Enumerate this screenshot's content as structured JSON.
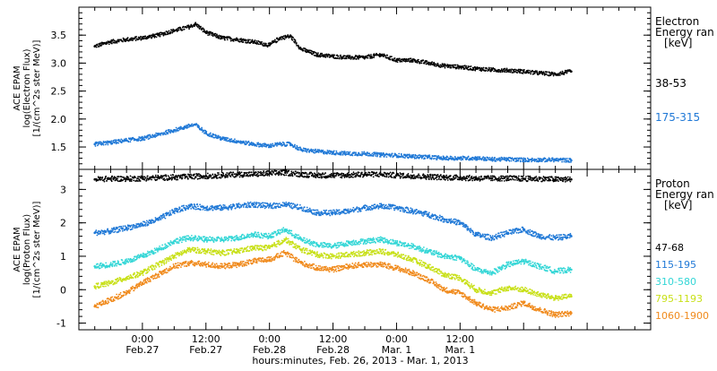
{
  "chart_data": [
    {
      "type": "scatter",
      "title": "",
      "ylabel": [
        "ACE EPAM",
        "log(Electron Flux)",
        "[1/(cm^2s ster MeV)]"
      ],
      "ylim": [
        1.1,
        4.0
      ],
      "yticks": [
        1.5,
        2.0,
        2.5,
        3.0,
        3.5
      ],
      "legend_title": [
        "Electron",
        "Energy ran",
        "[keV]"
      ],
      "series": [
        {
          "name": "38-53",
          "color": "#000000",
          "x": [
            -9,
            -6,
            -3,
            0,
            3,
            6,
            9,
            10,
            12,
            15,
            18,
            21,
            24,
            26,
            28,
            30,
            33,
            36,
            39,
            42,
            45,
            48,
            51,
            54,
            57,
            60,
            63,
            66,
            69,
            72,
            75,
            78,
            81
          ],
          "y": [
            3.3,
            3.38,
            3.42,
            3.45,
            3.5,
            3.58,
            3.65,
            3.7,
            3.55,
            3.45,
            3.42,
            3.38,
            3.32,
            3.45,
            3.48,
            3.25,
            3.15,
            3.12,
            3.1,
            3.1,
            3.15,
            3.05,
            3.05,
            3.0,
            2.95,
            2.93,
            2.9,
            2.88,
            2.87,
            2.85,
            2.82,
            2.8,
            2.85
          ]
        },
        {
          "name": "175-315",
          "color": "#1f78d6",
          "x": [
            -9,
            -6,
            -3,
            0,
            3,
            6,
            9,
            10,
            12,
            15,
            18,
            21,
            24,
            26,
            28,
            30,
            33,
            36,
            39,
            42,
            45,
            48,
            51,
            54,
            57,
            60,
            63,
            66,
            69,
            72,
            75,
            78,
            81
          ],
          "y": [
            1.55,
            1.58,
            1.62,
            1.65,
            1.72,
            1.8,
            1.88,
            1.9,
            1.75,
            1.65,
            1.6,
            1.55,
            1.52,
            1.55,
            1.55,
            1.45,
            1.42,
            1.4,
            1.38,
            1.38,
            1.36,
            1.35,
            1.33,
            1.32,
            1.3,
            1.3,
            1.3,
            1.28,
            1.28,
            1.27,
            1.27,
            1.27,
            1.26
          ]
        }
      ]
    },
    {
      "type": "scatter",
      "title": "",
      "ylabel": [
        "ACE EPAM",
        "log(Proton Flux)",
        "[1/(cm^2s ster MeV)]"
      ],
      "ylim": [
        -1.2,
        3.6
      ],
      "yticks": [
        -1,
        0,
        1,
        2,
        3
      ],
      "legend_title": [
        "Proton",
        "Energy ran",
        "[keV]"
      ],
      "series": [
        {
          "name": "47-68",
          "color": "#000000",
          "x": [
            -9,
            -6,
            -3,
            0,
            3,
            6,
            9,
            12,
            15,
            18,
            21,
            24,
            27,
            30,
            33,
            36,
            39,
            42,
            45,
            48,
            51,
            54,
            57,
            60,
            63,
            66,
            69,
            72,
            75,
            78,
            81
          ],
          "y": [
            3.3,
            3.32,
            3.32,
            3.33,
            3.35,
            3.36,
            3.38,
            3.4,
            3.42,
            3.45,
            3.45,
            3.48,
            3.5,
            3.45,
            3.42,
            3.42,
            3.43,
            3.45,
            3.45,
            3.42,
            3.4,
            3.38,
            3.36,
            3.35,
            3.33,
            3.33,
            3.33,
            3.32,
            3.32,
            3.3,
            3.3
          ]
        },
        {
          "name": "115-195",
          "color": "#1f78d6",
          "x": [
            -9,
            -6,
            -3,
            0,
            3,
            6,
            9,
            12,
            15,
            18,
            21,
            24,
            27,
            30,
            33,
            36,
            39,
            42,
            45,
            48,
            51,
            54,
            57,
            60,
            63,
            66,
            69,
            72,
            75,
            78,
            81
          ],
          "y": [
            1.7,
            1.75,
            1.85,
            1.95,
            2.1,
            2.35,
            2.5,
            2.45,
            2.45,
            2.5,
            2.55,
            2.5,
            2.55,
            2.45,
            2.3,
            2.3,
            2.35,
            2.45,
            2.5,
            2.45,
            2.35,
            2.25,
            2.1,
            2.0,
            1.65,
            1.55,
            1.7,
            1.8,
            1.6,
            1.55,
            1.6
          ]
        },
        {
          "name": "310-580",
          "color": "#33d6d6",
          "x": [
            -9,
            -6,
            -3,
            0,
            3,
            6,
            9,
            12,
            15,
            18,
            21,
            24,
            27,
            30,
            33,
            36,
            39,
            42,
            45,
            48,
            51,
            54,
            57,
            60,
            63,
            66,
            69,
            72,
            75,
            78,
            81
          ],
          "y": [
            0.7,
            0.75,
            0.85,
            1.0,
            1.2,
            1.45,
            1.55,
            1.5,
            1.5,
            1.55,
            1.65,
            1.6,
            1.8,
            1.5,
            1.35,
            1.3,
            1.4,
            1.45,
            1.5,
            1.4,
            1.3,
            1.15,
            1.0,
            0.95,
            0.6,
            0.5,
            0.75,
            0.85,
            0.7,
            0.55,
            0.6
          ]
        },
        {
          "name": "795-1193",
          "color": "#c8e018",
          "x": [
            -9,
            -6,
            -3,
            0,
            3,
            6,
            9,
            12,
            15,
            18,
            21,
            24,
            27,
            30,
            33,
            36,
            39,
            42,
            45,
            48,
            51,
            54,
            57,
            60,
            63,
            66,
            69,
            72,
            75,
            78,
            81
          ],
          "y": [
            0.1,
            0.2,
            0.35,
            0.5,
            0.75,
            1.0,
            1.2,
            1.15,
            1.1,
            1.15,
            1.25,
            1.25,
            1.5,
            1.2,
            1.05,
            1.0,
            1.05,
            1.1,
            1.15,
            1.05,
            0.9,
            0.7,
            0.45,
            0.35,
            0.0,
            -0.1,
            0.05,
            0.0,
            -0.15,
            -0.25,
            -0.2
          ]
        },
        {
          "name": "1060-1900",
          "color": "#f08a1c",
          "x": [
            -9,
            -6,
            -3,
            0,
            3,
            6,
            9,
            12,
            15,
            18,
            21,
            24,
            27,
            30,
            33,
            36,
            39,
            42,
            45,
            48,
            51,
            54,
            57,
            60,
            63,
            66,
            69,
            72,
            75,
            78,
            81
          ],
          "y": [
            -0.5,
            -0.3,
            -0.1,
            0.2,
            0.45,
            0.7,
            0.8,
            0.75,
            0.7,
            0.75,
            0.85,
            0.9,
            1.1,
            0.8,
            0.65,
            0.6,
            0.7,
            0.75,
            0.75,
            0.65,
            0.5,
            0.3,
            0.0,
            -0.1,
            -0.4,
            -0.6,
            -0.55,
            -0.4,
            -0.6,
            -0.75,
            -0.7
          ]
        }
      ]
    }
  ],
  "xaxis": {
    "xlim": [
      -12,
      96
    ],
    "ticks": [
      {
        "x": 0,
        "time": "0:00",
        "date": "Feb.27"
      },
      {
        "x": 12,
        "time": "12:00",
        "date": "Feb.27"
      },
      {
        "x": 24,
        "time": "0:00",
        "date": "Feb.28"
      },
      {
        "x": 36,
        "time": "12:00",
        "date": "Feb.28"
      },
      {
        "x": 48,
        "time": "0:00",
        "date": "Mar. 1"
      },
      {
        "x": 60,
        "time": "12:00",
        "date": "Mar. 1"
      }
    ],
    "label": "hours:minutes, Feb. 26, 2013 - Mar. 1, 2013"
  }
}
